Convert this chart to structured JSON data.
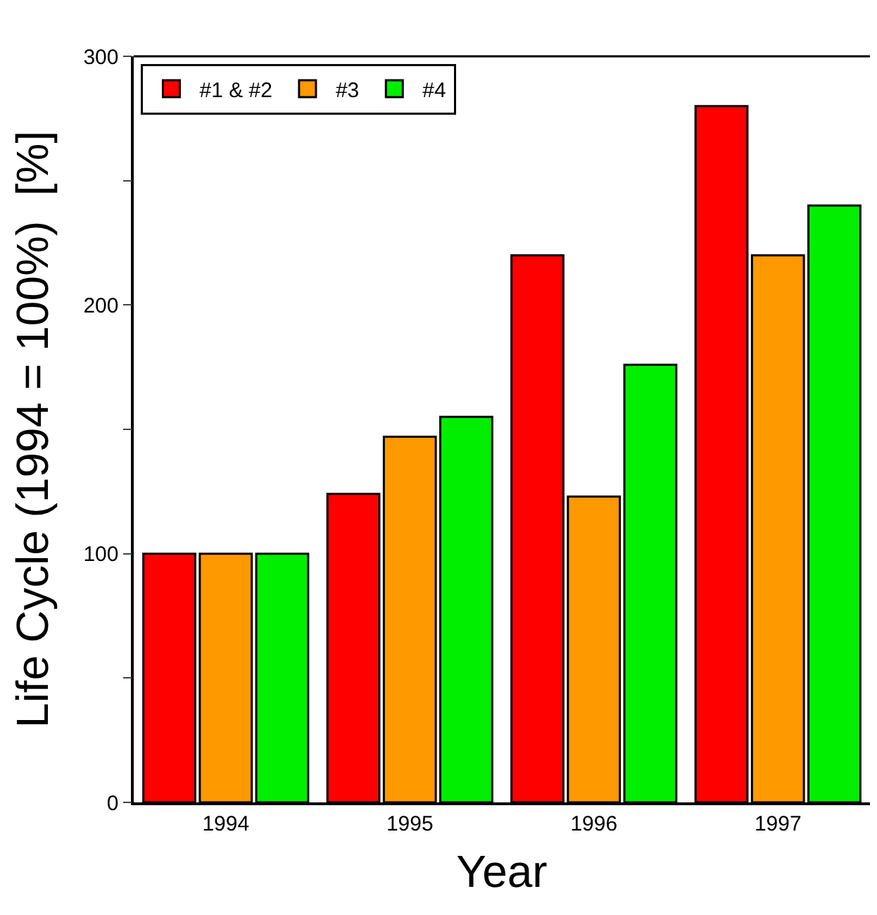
{
  "chart_data": {
    "type": "bar",
    "xlabel": "Year",
    "ylabel": "Life Cycle (1994 = 100%)  [%]",
    "categories": [
      "1994",
      "1995",
      "1996",
      "1997"
    ],
    "series": [
      {
        "name": "#1 & #2",
        "color": "#ff0000",
        "values": [
          100,
          124,
          220,
          280
        ]
      },
      {
        "name": "#3",
        "color": "#ff9900",
        "values": [
          100,
          147,
          123,
          220
        ]
      },
      {
        "name": "#4",
        "color": "#00ee00",
        "values": [
          100,
          155,
          176,
          240
        ]
      }
    ],
    "ylim": [
      0,
      300
    ],
    "yticks": [
      0,
      {
        "value": 50,
        "label": null
      },
      100,
      {
        "value": 150,
        "label": null
      },
      200,
      {
        "value": 250,
        "label": null
      },
      300
    ],
    "legend": "top left"
  }
}
